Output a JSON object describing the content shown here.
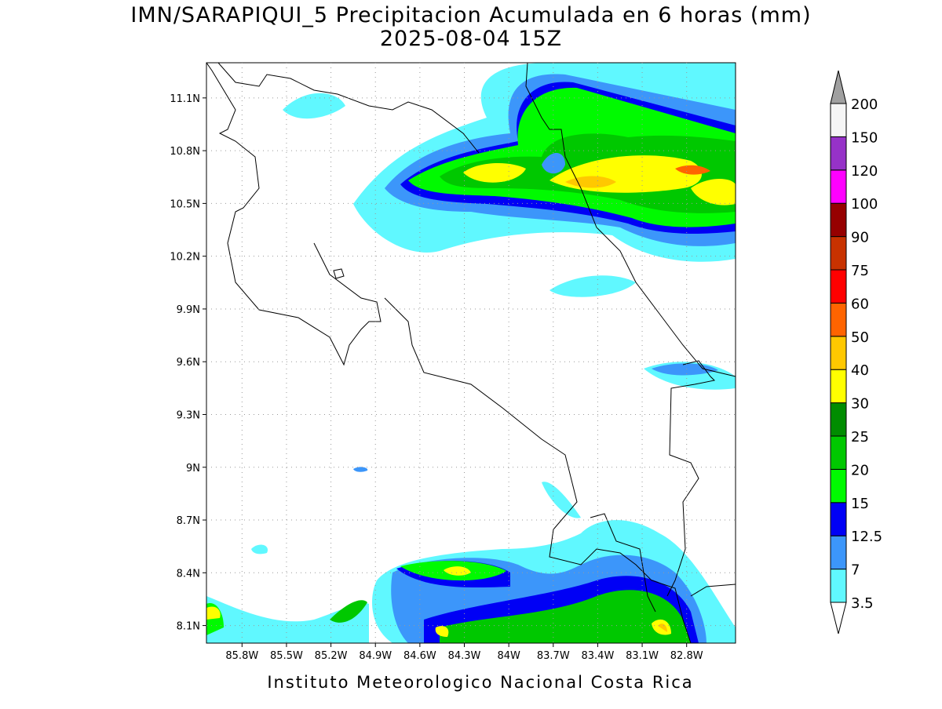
{
  "map": {
    "title": "IMN/SARAPIQUI_5 Precipitacion Acumulada en 6 horas (mm)",
    "subtitle": "2025-08-04 15Z",
    "footer": "Instituto Meteorologico Nacional Costa Rica",
    "xlim": [
      -86.04,
      -82.47
    ],
    "ylim": [
      8.0,
      11.3
    ],
    "xticks": [
      {
        "value": -85.8,
        "label": "85.8W"
      },
      {
        "value": -85.5,
        "label": "85.5W"
      },
      {
        "value": -85.2,
        "label": "85.2W"
      },
      {
        "value": -84.9,
        "label": "84.9W"
      },
      {
        "value": -84.6,
        "label": "84.6W"
      },
      {
        "value": -84.3,
        "label": "84.3W"
      },
      {
        "value": -84.0,
        "label": "84W"
      },
      {
        "value": -83.7,
        "label": "83.7W"
      },
      {
        "value": -83.4,
        "label": "83.4W"
      },
      {
        "value": -83.1,
        "label": "83.1W"
      },
      {
        "value": -82.8,
        "label": "82.8W"
      }
    ],
    "yticks": [
      {
        "value": 8.1,
        "label": "8.1N"
      },
      {
        "value": 8.4,
        "label": "8.4N"
      },
      {
        "value": 8.7,
        "label": "8.7N"
      },
      {
        "value": 9.0,
        "label": "9N"
      },
      {
        "value": 9.3,
        "label": "9.3N"
      },
      {
        "value": 9.6,
        "label": "9.6N"
      },
      {
        "value": 9.9,
        "label": "9.9N"
      },
      {
        "value": 10.2,
        "label": "10.2N"
      },
      {
        "value": 10.5,
        "label": "10.5N"
      },
      {
        "value": 10.8,
        "label": "10.8N"
      },
      {
        "value": 11.1,
        "label": "11.1N"
      }
    ],
    "grid": true,
    "colorbar": {
      "levels": [
        3.5,
        7,
        12.5,
        15,
        20,
        25,
        30,
        40,
        50,
        60,
        75,
        90,
        100,
        120,
        150,
        200
      ],
      "colors": [
        "#ffffff",
        "#60f8ff",
        "#3c96fa",
        "#0000f5",
        "#00fa00",
        "#00c800",
        "#008c00",
        "#ffff00",
        "#ffc800",
        "#ff6400",
        "#ff0000",
        "#c83200",
        "#960000",
        "#ff00ff",
        "#9632c8",
        "#f5f5f5",
        "#a0a0a0"
      ]
    }
  }
}
